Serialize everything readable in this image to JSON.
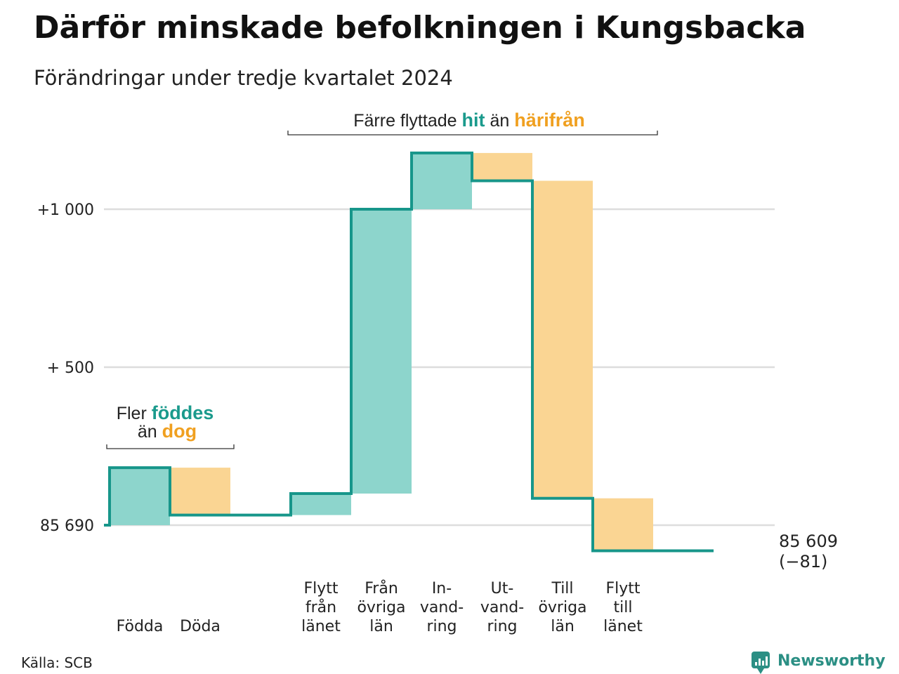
{
  "title": "Därför minskade befolkningen i Kungsbacka",
  "subtitle": "Förändringar under tredje kvartalet 2024",
  "source": "Källa: SCB",
  "brand": "Newsworthy",
  "colors": {
    "increase": "#8dd5cc",
    "decrease": "#fad593",
    "line": "#17968a",
    "accent_teal": "#1a9a8c",
    "accent_orange": "#f0a020",
    "grid": "#dddddd"
  },
  "annotations": {
    "births": {
      "prefix": "Fler",
      "teal": "föddes",
      "mid": "än",
      "orange": "dog"
    },
    "moves": {
      "prefix": "Färre flyttade",
      "teal": "hit",
      "mid": "än",
      "orange": "härifrån"
    }
  },
  "end_label": {
    "value": "85 609",
    "change": "(−81)"
  },
  "chart_data": {
    "type": "waterfall",
    "start_value": 85690,
    "end_value": 85609,
    "net_change": -81,
    "y_ticks": [
      {
        "value": 0,
        "label": "85 690"
      },
      {
        "value": 500,
        "label": "+  500"
      },
      {
        "value": 1000,
        "label": "+1 000"
      }
    ],
    "ylim": [
      -90,
      1180
    ],
    "grid": true,
    "steps": [
      {
        "label": [
          "Födda"
        ],
        "value": 182,
        "kind": "increase"
      },
      {
        "label": [
          "Döda"
        ],
        "value": -150,
        "kind": "decrease"
      },
      {
        "label": [
          ""
        ],
        "value": 0,
        "kind": "gap"
      },
      {
        "label": [
          "Flytt",
          "från",
          "länet"
        ],
        "value": 68,
        "kind": "increase"
      },
      {
        "label": [
          "Från",
          "övriga",
          "län"
        ],
        "value": 900,
        "kind": "increase"
      },
      {
        "label": [
          "In-",
          "vand-",
          "ring"
        ],
        "value": 178,
        "kind": "increase"
      },
      {
        "label": [
          "Ut-",
          "vand-",
          "ring"
        ],
        "value": -88,
        "kind": "decrease"
      },
      {
        "label": [
          "Till",
          "övriga",
          "län"
        ],
        "value": -1005,
        "kind": "decrease"
      },
      {
        "label": [
          "Flytt",
          "till",
          "länet"
        ],
        "value": -166,
        "kind": "decrease"
      },
      {
        "label": [
          ""
        ],
        "value": 0,
        "kind": "gap"
      }
    ]
  }
}
